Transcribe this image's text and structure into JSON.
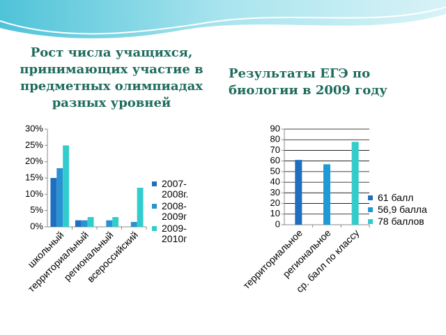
{
  "chart_data": [
    {
      "type": "bar",
      "title": "Рост числа учащихся, принимающих участие  в предметных олимпиадах разных уровней",
      "categories": [
        "школьный",
        "территориальный",
        "региональный",
        "всероссийский"
      ],
      "series": [
        {
          "name": "2007-2008г.",
          "color": "#1f6fc0",
          "values": [
            15,
            2,
            0,
            0
          ]
        },
        {
          "name": "2008-2009г",
          "color": "#2a92d2",
          "values": [
            18,
            2,
            2,
            1.5
          ]
        },
        {
          "name": "2009-2010г",
          "color": "#33cccc",
          "values": [
            25,
            3,
            3,
            12
          ]
        }
      ],
      "ylim": [
        0,
        30
      ],
      "yticks": [
        {
          "value": 0,
          "label": "0%"
        },
        {
          "value": 5,
          "label": "5%"
        },
        {
          "value": 10,
          "label": "10%"
        },
        {
          "value": 15,
          "label": "15%"
        },
        {
          "value": 20,
          "label": "20%"
        },
        {
          "value": 25,
          "label": "25%"
        },
        {
          "value": 30,
          "label": "30%"
        }
      ],
      "grid": false,
      "legend": "right"
    },
    {
      "type": "bar",
      "title": "Результаты ЕГЭ по биологии в 2009 году",
      "categories": [
        "территориальное",
        "региональное",
        "ср. балл по классу"
      ],
      "series": [
        {
          "name": "61 балл",
          "color": "#1f6fc0",
          "values": [
            61,
            null,
            null
          ]
        },
        {
          "name": "56,9 балла",
          "color": "#1e9ad6",
          "values": [
            null,
            56.9,
            null
          ]
        },
        {
          "name": "78 баллов",
          "color": "#33cccc",
          "values": [
            null,
            null,
            78
          ]
        }
      ],
      "ylim": [
        0,
        90
      ],
      "yticks": [
        0,
        10,
        20,
        30,
        40,
        50,
        60,
        70,
        80,
        90
      ],
      "grid": true,
      "legend": "right"
    }
  ]
}
